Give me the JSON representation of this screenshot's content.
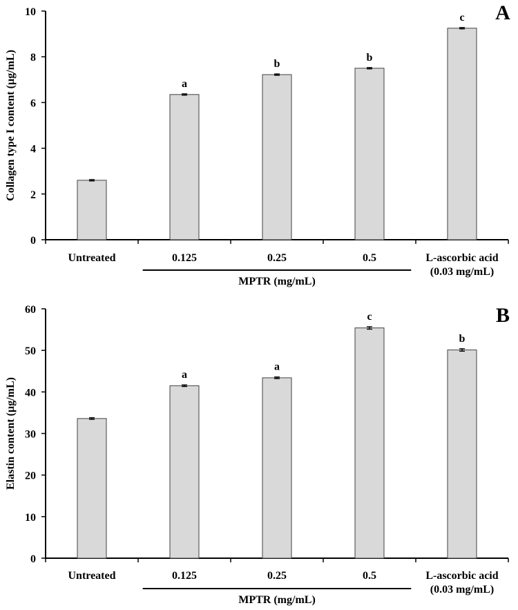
{
  "chart_data": [
    {
      "type": "bar",
      "panel_label": "A",
      "ylabel": "Collagen type I content (µg/mL)",
      "xlabel": "",
      "ylim": [
        0,
        10
      ],
      "yticks": [
        0,
        2,
        4,
        6,
        8,
        10
      ],
      "categories": [
        "Untreated",
        "0.125",
        "0.25",
        "0.5",
        "L-ascorbic acid\n(0.03 mg/mL)"
      ],
      "values": [
        2.6,
        6.35,
        7.22,
        7.5,
        9.25
      ],
      "errors": [
        0.03,
        0.03,
        0.03,
        0.03,
        0.03
      ],
      "significance": [
        "",
        "a",
        "b",
        "b",
        "c"
      ],
      "group_label": "MPTR (mg/mL)",
      "group_range": [
        1,
        3
      ]
    },
    {
      "type": "bar",
      "panel_label": "B",
      "ylabel": "Elastin content (µg/mL)",
      "xlabel": "",
      "ylim": [
        0,
        60
      ],
      "yticks": [
        0,
        10,
        20,
        30,
        40,
        50,
        60
      ],
      "categories": [
        "Untreated",
        "0.125",
        "0.25",
        "0.5",
        "L-ascorbic acid\n(0.03 mg/mL)"
      ],
      "values": [
        33.6,
        41.5,
        43.4,
        55.4,
        50.1
      ],
      "errors": [
        0.2,
        0.2,
        0.2,
        0.3,
        0.3
      ],
      "significance": [
        "",
        "a",
        "a",
        "c",
        "b"
      ],
      "group_label": "MPTR (mg/mL)",
      "group_range": [
        1,
        3
      ]
    }
  ]
}
